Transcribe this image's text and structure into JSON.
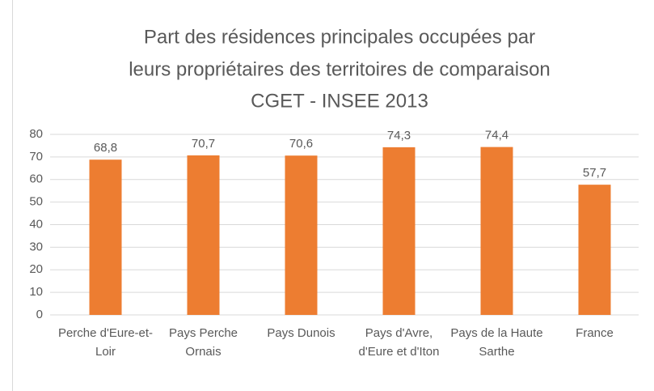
{
  "chart_data": {
    "type": "bar",
    "title": [
      "Part des résidences principales occupées par",
      "leurs propriétaires des territoires de comparaison",
      "CGET - INSEE 2013"
    ],
    "categories": [
      "Perche d'Eure-et-Loir",
      "Pays Perche Ornais",
      "Pays Dunois",
      "Pays d'Avre, d'Eure et d'Iton",
      "Pays de la Haute Sarthe",
      "France"
    ],
    "values": [
      68.8,
      70.7,
      70.6,
      74.3,
      74.4,
      57.7
    ],
    "value_labels": [
      "68,8",
      "70,7",
      "70,6",
      "74,3",
      "74,4",
      "57,7"
    ],
    "color": "#ed7d31",
    "ylim": [
      0,
      80
    ],
    "yticks": [
      0,
      10,
      20,
      30,
      40,
      50,
      60,
      70,
      80
    ],
    "grid": true
  }
}
